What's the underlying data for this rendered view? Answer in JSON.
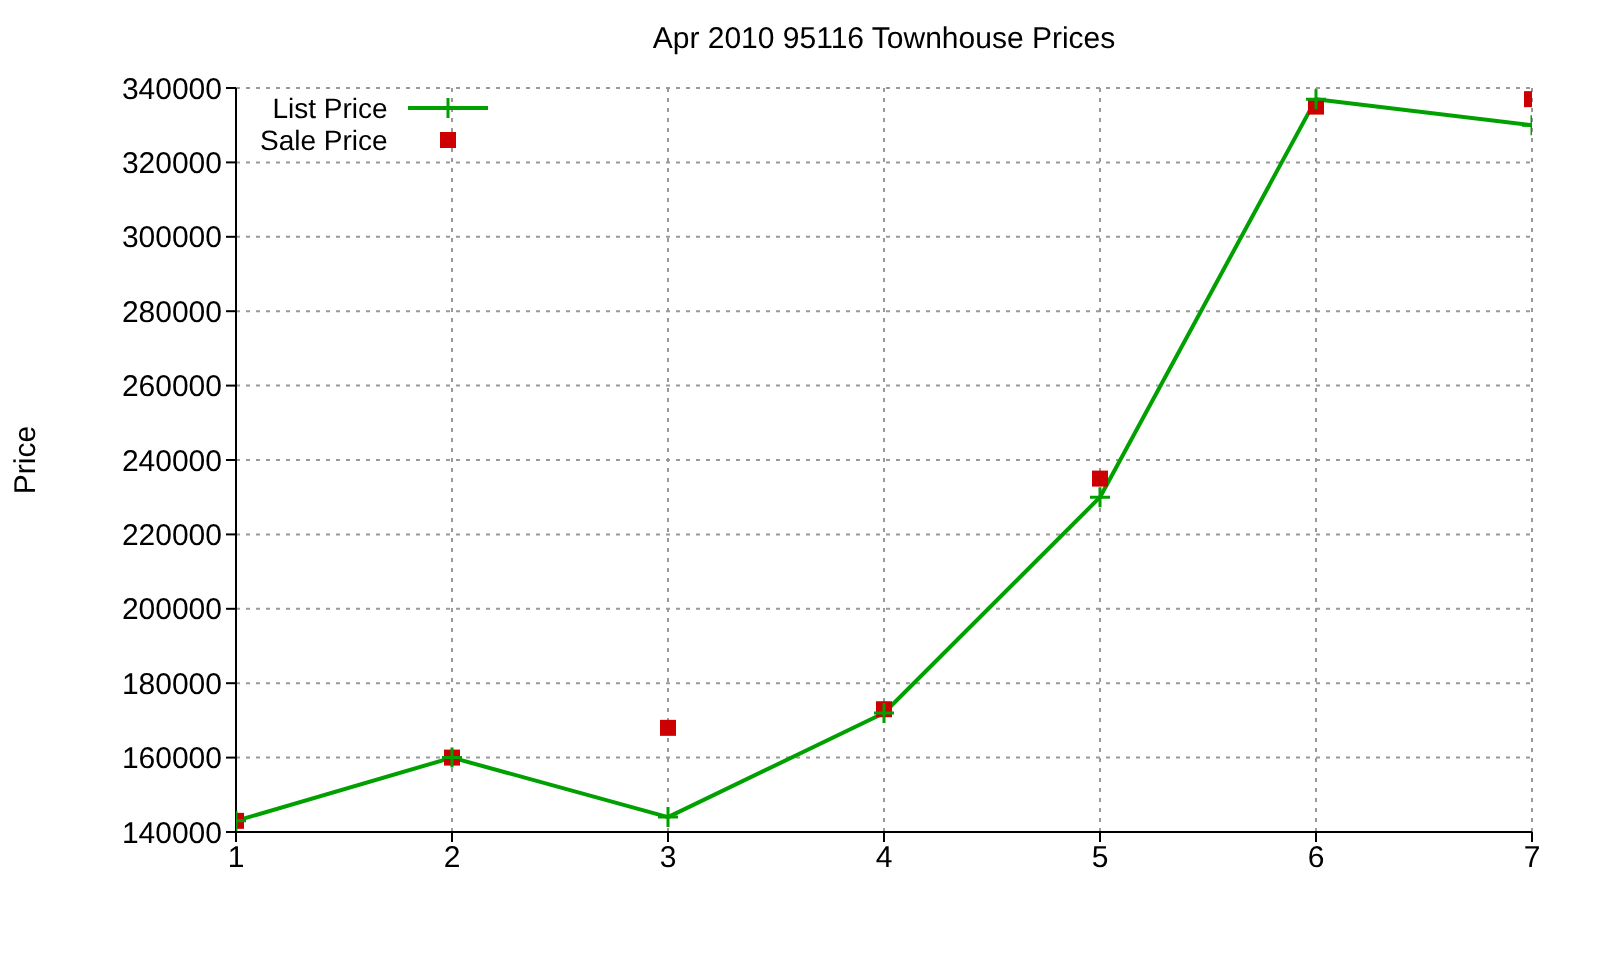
{
  "chart_data": {
    "type": "line",
    "title": "Apr 2010 95116 Townhouse Prices",
    "ylabel": "Price",
    "x": [
      1,
      2,
      3,
      4,
      5,
      6,
      7
    ],
    "xlim": [
      1,
      7
    ],
    "xticks": [
      1,
      2,
      3,
      4,
      5,
      6,
      7
    ],
    "ylim": [
      140000,
      340000
    ],
    "yticks": [
      140000,
      160000,
      180000,
      200000,
      220000,
      240000,
      260000,
      280000,
      300000,
      320000,
      340000
    ],
    "grid": true,
    "legend": "top left",
    "series": [
      {
        "name": "List Price",
        "marker": "cross",
        "color": "#00a000",
        "values": [
          143000,
          160000,
          144000,
          172000,
          230000,
          337000,
          330000
        ]
      },
      {
        "name": "Sale Price",
        "type": "scatter",
        "marker": "square",
        "color": "#cc0000",
        "values": [
          143000,
          160000,
          168000,
          173000,
          235000,
          335000,
          337000
        ]
      }
    ]
  }
}
